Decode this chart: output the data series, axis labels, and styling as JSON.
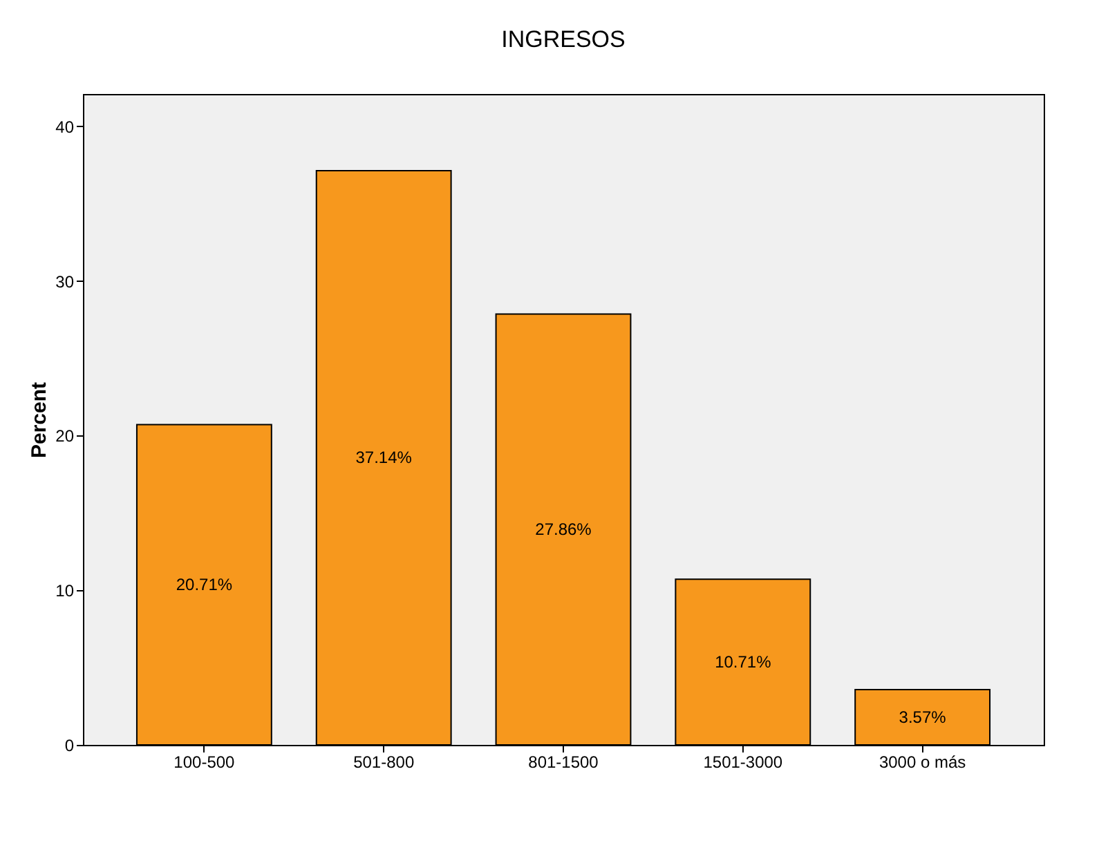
{
  "chart_data": {
    "type": "bar",
    "title": "INGRESOS",
    "ylabel": "Percent",
    "categories": [
      "100-500",
      "501-800",
      "801-1500",
      "1501-3000",
      "3000 o más"
    ],
    "values": [
      20.71,
      37.14,
      27.86,
      10.71,
      3.57
    ],
    "value_labels": [
      "20.71%",
      "37.14%",
      "27.86%",
      "10.71%",
      "3.57%"
    ],
    "color": "#f7981d",
    "ylim": [
      0,
      42.1
    ],
    "yticks": [
      0,
      10,
      20,
      30,
      40
    ],
    "grid": false
  }
}
